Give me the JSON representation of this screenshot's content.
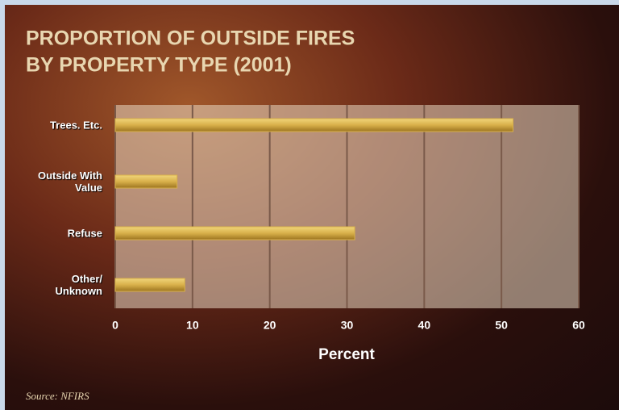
{
  "chart_data": {
    "type": "bar",
    "orientation": "horizontal",
    "title": [
      "PROPORTION OF OUTSIDE FIRES",
      "BY PROPERTY TYPE (2001)"
    ],
    "categories": [
      "Trees. Etc.",
      "Outside With Value",
      "Refuse",
      "Other/ Unknown"
    ],
    "values": [
      51.5,
      8,
      31,
      9
    ],
    "color": "#d8b04a",
    "xlim": [
      0,
      60
    ],
    "xticks": [
      0,
      10,
      20,
      30,
      40,
      50,
      60
    ],
    "xlabel": "Percent",
    "grid": true,
    "source": "Source: NFIRS"
  }
}
